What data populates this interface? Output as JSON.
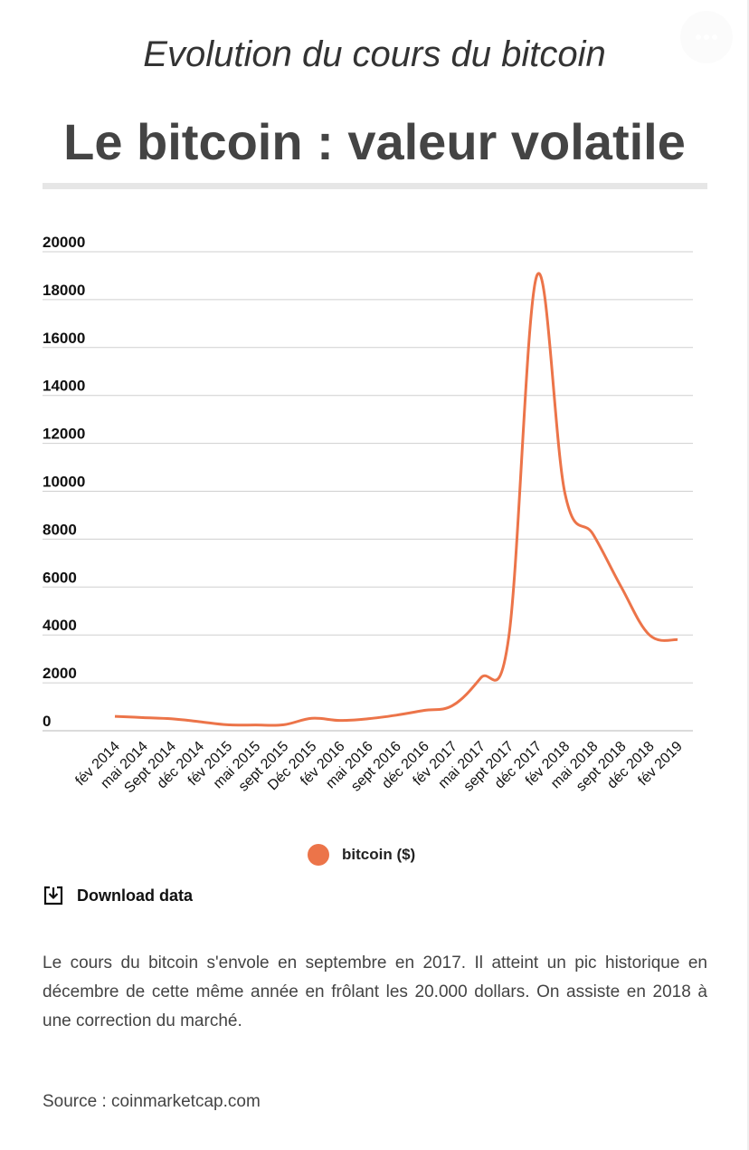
{
  "header": {
    "subtitle": "Evolution du cours du bitcoin",
    "title": "Le bitcoin : valeur volatile"
  },
  "chart_data": {
    "type": "line",
    "title": "Le bitcoin : valeur volatile",
    "xlabel": "",
    "ylabel": "",
    "ylim": [
      0,
      20000
    ],
    "yticks": [
      0,
      2000,
      4000,
      6000,
      8000,
      10000,
      12000,
      14000,
      16000,
      18000,
      20000
    ],
    "categories": [
      "fév 2014",
      "mai 2014",
      "Sept 2014",
      "déc 2014",
      "fév 2015",
      "mai 2015",
      "sept 2015",
      "Déc 2015",
      "fév 2016",
      "mai 2016",
      "sept 2016",
      "déc 2016",
      "fév 2017",
      "mai 2017",
      "sept 2017",
      "déc 2017",
      "fév 2018",
      "mai 2018",
      "sept 2018",
      "déc 2018",
      "fév 2019"
    ],
    "series": [
      {
        "name": "bitcoin ($)",
        "color": "#ec7449",
        "values": [
          600,
          550,
          500,
          380,
          250,
          240,
          250,
          520,
          430,
          500,
          650,
          850,
          1050,
          2200,
          3900,
          19000,
          9900,
          8200,
          6000,
          4000,
          3800
        ]
      }
    ],
    "grid": true,
    "legend": "bottom"
  },
  "download_label": "Download data",
  "description": "Le cours du bitcoin s'envole en septembre en 2017. Il atteint un pic historique en décembre de cette même année en frôlant les 20.000 dollars. On assiste en 2018 à une correction du marché.",
  "source": "Source : coinmarketcap.com"
}
